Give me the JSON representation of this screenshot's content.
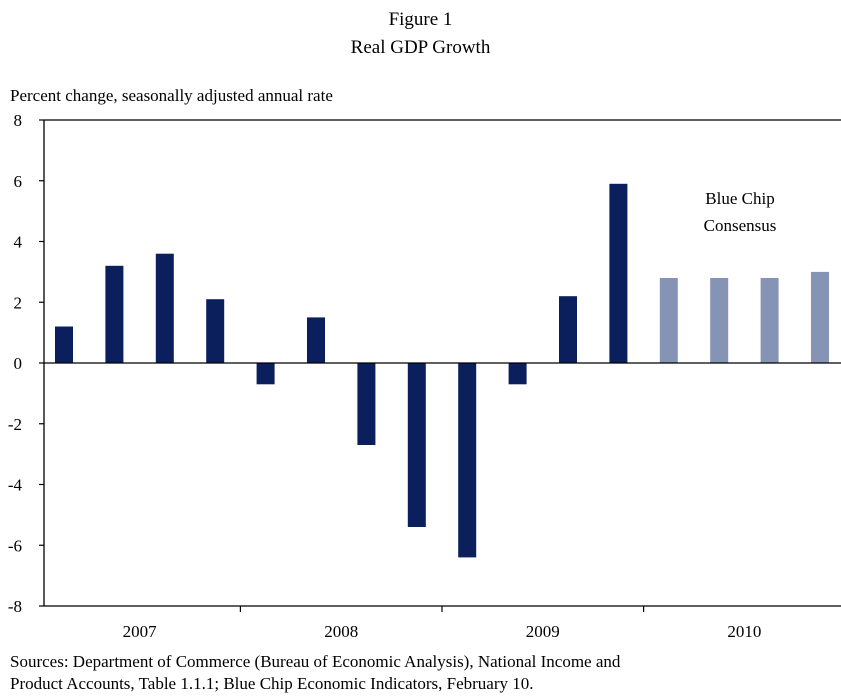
{
  "figure_label": "Figure 1",
  "sources": [
    "Sources:  Department of Commerce (Bureau of Economic Analysis), National Income and",
    "Product Accounts,  Table 1.1.1;  Blue Chip Economic Indicators, February 10."
  ],
  "colors": {
    "actual": "#0a1f5c",
    "forecast": "#8594b5",
    "axis": "#000000"
  },
  "chart_data": {
    "type": "bar",
    "title": "Real GDP Growth",
    "ylabel": "Percent change, seasonally adjusted annual rate",
    "xlabel": "",
    "ylim": [
      -8,
      8
    ],
    "yticks": [
      8,
      6,
      4,
      2,
      0,
      -2,
      -4,
      -6,
      -8
    ],
    "year_labels": [
      "2007",
      "2008",
      "2009",
      "2010"
    ],
    "annotation": [
      "Blue Chip",
      "Consensus"
    ],
    "grid": false,
    "series": [
      {
        "name": "",
        "style": "actual",
        "quarters": [
          "2007Q1",
          "2007Q2",
          "2007Q3",
          "2007Q4",
          "2008Q1",
          "2008Q2",
          "2008Q3",
          "2008Q4",
          "2009Q1",
          "2009Q2",
          "2009Q3",
          "2009Q4"
        ],
        "values": [
          1.2,
          3.2,
          3.6,
          2.1,
          -0.7,
          1.5,
          -2.7,
          -5.4,
          -6.4,
          -0.7,
          2.2,
          5.9
        ]
      },
      {
        "name": "Blue Chip Consensus",
        "style": "forecast",
        "quarters": [
          "2010Q1",
          "2010Q2",
          "2010Q3",
          "2010Q4"
        ],
        "values": [
          2.8,
          2.8,
          2.8,
          3.0
        ]
      }
    ]
  }
}
